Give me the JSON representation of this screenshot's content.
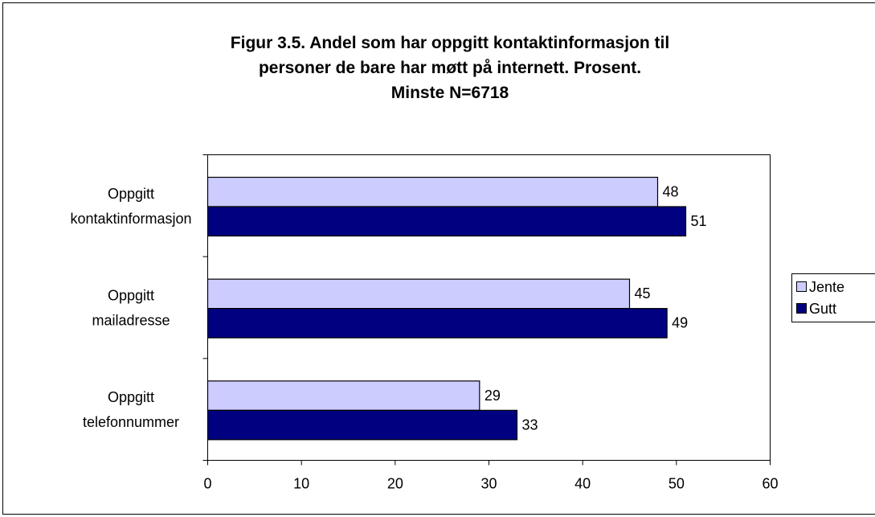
{
  "chart_data": {
    "type": "bar",
    "orientation": "horizontal",
    "title": "Figur 3.5. Andel som har oppgitt kontaktinformasjon til\npersoner de bare har møtt på internett. Prosent.\nMinste N=6718",
    "categories": [
      "Oppgitt kontaktinformasjon",
      "Oppgitt mailadresse",
      "Oppgitt telefonnummer"
    ],
    "series": [
      {
        "name": "Jente",
        "color": "#ccccff",
        "values": [
          48,
          45,
          29
        ]
      },
      {
        "name": "Gutt",
        "color": "#000080",
        "values": [
          51,
          49,
          33
        ]
      }
    ],
    "xlim": [
      0,
      60
    ],
    "xticks": [
      0,
      10,
      20,
      30,
      40,
      50,
      60
    ],
    "grid": false,
    "legend": "right"
  }
}
